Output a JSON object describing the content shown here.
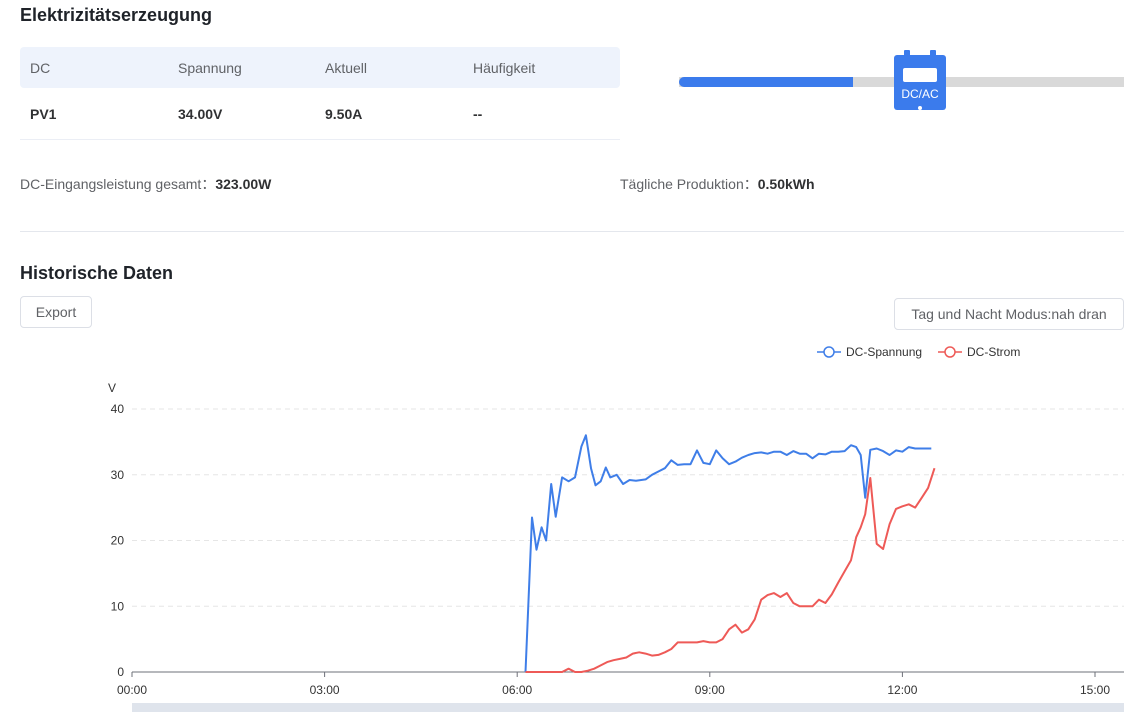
{
  "generation": {
    "title": "Elektrizitätserzeugung",
    "table": {
      "headers": [
        "DC",
        "Spannung",
        "Aktuell",
        "Häufigkeit"
      ],
      "rows": [
        [
          "PV1",
          "34.00V",
          "9.50A",
          "--"
        ]
      ]
    },
    "inverter_label": "DC/AC",
    "flow_progress": 0.39,
    "summary": {
      "dc_label": "DC-Eingangsleistung gesamt：",
      "dc_value": "323.00W",
      "daily_label": "Tägliche Produktion：",
      "daily_value": "0.50kWh"
    }
  },
  "history": {
    "title": "Historische Daten",
    "export_button": "Export",
    "mode_button": "Tag und Nacht Modus:nah dran"
  },
  "colors": {
    "accent": "#3b7bec",
    "voltage": "#3f7ee8",
    "current": "#ee5a57"
  },
  "chart_data": {
    "type": "line",
    "ylabel": "V",
    "ylim": [
      0,
      40
    ],
    "yticks": [
      0,
      10,
      20,
      30,
      40
    ],
    "xlim": [
      0,
      15
    ],
    "xticks": [
      "00:00",
      "03:00",
      "06:00",
      "09:00",
      "12:00",
      "15:00"
    ],
    "legend_position": "top-right",
    "grid": true,
    "series": [
      {
        "name": "DC-Spannung",
        "color": "#3f7ee8",
        "x": [
          6.13,
          6.23,
          6.3,
          6.38,
          6.45,
          6.53,
          6.6,
          6.7,
          6.8,
          6.9,
          7.0,
          7.07,
          7.15,
          7.22,
          7.3,
          7.38,
          7.45,
          7.55,
          7.65,
          7.75,
          7.85,
          8.0,
          8.1,
          8.2,
          8.3,
          8.4,
          8.5,
          8.6,
          8.7,
          8.8,
          8.9,
          9.0,
          9.1,
          9.2,
          9.3,
          9.4,
          9.5,
          9.6,
          9.7,
          9.8,
          9.9,
          10.0,
          10.1,
          10.2,
          10.3,
          10.4,
          10.5,
          10.6,
          10.7,
          10.8,
          10.9,
          11.0,
          11.1,
          11.2,
          11.28,
          11.35,
          11.42,
          11.5,
          11.6,
          11.7,
          11.8,
          11.9,
          12.0,
          12.1,
          12.2,
          12.3,
          12.45
        ],
        "values": [
          0,
          23.5,
          18.6,
          22.0,
          20.0,
          28.6,
          23.6,
          29.6,
          29.0,
          29.6,
          34.3,
          36.0,
          31.0,
          28.4,
          29.0,
          31.1,
          29.6,
          30.0,
          28.6,
          29.2,
          29.1,
          29.3,
          30.0,
          30.5,
          31.0,
          32.2,
          31.5,
          31.6,
          31.6,
          33.7,
          31.8,
          31.6,
          33.7,
          32.5,
          31.6,
          32.0,
          32.6,
          33.0,
          33.3,
          33.4,
          33.2,
          33.5,
          33.5,
          33.0,
          33.6,
          33.2,
          33.2,
          32.5,
          33.2,
          33.1,
          33.5,
          33.5,
          33.6,
          34.5,
          34.2,
          33.0,
          26.5,
          33.8,
          34.0,
          33.6,
          33.0,
          33.7,
          33.5,
          34.2,
          34.0,
          34.0,
          34.0
        ]
      },
      {
        "name": "DC-Strom",
        "color": "#ee5a57",
        "x": [
          6.13,
          6.3,
          6.5,
          6.7,
          6.8,
          6.9,
          7.0,
          7.1,
          7.2,
          7.3,
          7.4,
          7.5,
          7.6,
          7.7,
          7.8,
          7.9,
          8.0,
          8.1,
          8.2,
          8.3,
          8.4,
          8.5,
          8.6,
          8.7,
          8.8,
          8.9,
          9.0,
          9.1,
          9.2,
          9.3,
          9.4,
          9.5,
          9.6,
          9.7,
          9.8,
          9.9,
          10.0,
          10.1,
          10.2,
          10.3,
          10.4,
          10.5,
          10.6,
          10.7,
          10.8,
          10.9,
          11.0,
          11.1,
          11.2,
          11.28,
          11.35,
          11.42,
          11.5,
          11.6,
          11.7,
          11.8,
          11.9,
          12.0,
          12.1,
          12.2,
          12.3,
          12.4,
          12.5
        ],
        "values": [
          0,
          0,
          0,
          0,
          0.5,
          0,
          0,
          0.2,
          0.5,
          1.0,
          1.5,
          1.8,
          2.0,
          2.2,
          2.8,
          3.0,
          2.8,
          2.5,
          2.6,
          3.0,
          3.5,
          4.5,
          4.5,
          4.5,
          4.5,
          4.7,
          4.5,
          4.5,
          5.0,
          6.5,
          7.2,
          6.0,
          6.5,
          8.0,
          11.0,
          11.7,
          12.0,
          11.4,
          12.0,
          10.5,
          10.0,
          10.0,
          10.0,
          11.0,
          10.5,
          11.8,
          13.6,
          15.3,
          17.0,
          20.5,
          22.0,
          24.0,
          29.5,
          19.5,
          18.7,
          22.5,
          24.8,
          25.2,
          25.5,
          25.0,
          26.5,
          28.0,
          31.0
        ]
      }
    ]
  }
}
